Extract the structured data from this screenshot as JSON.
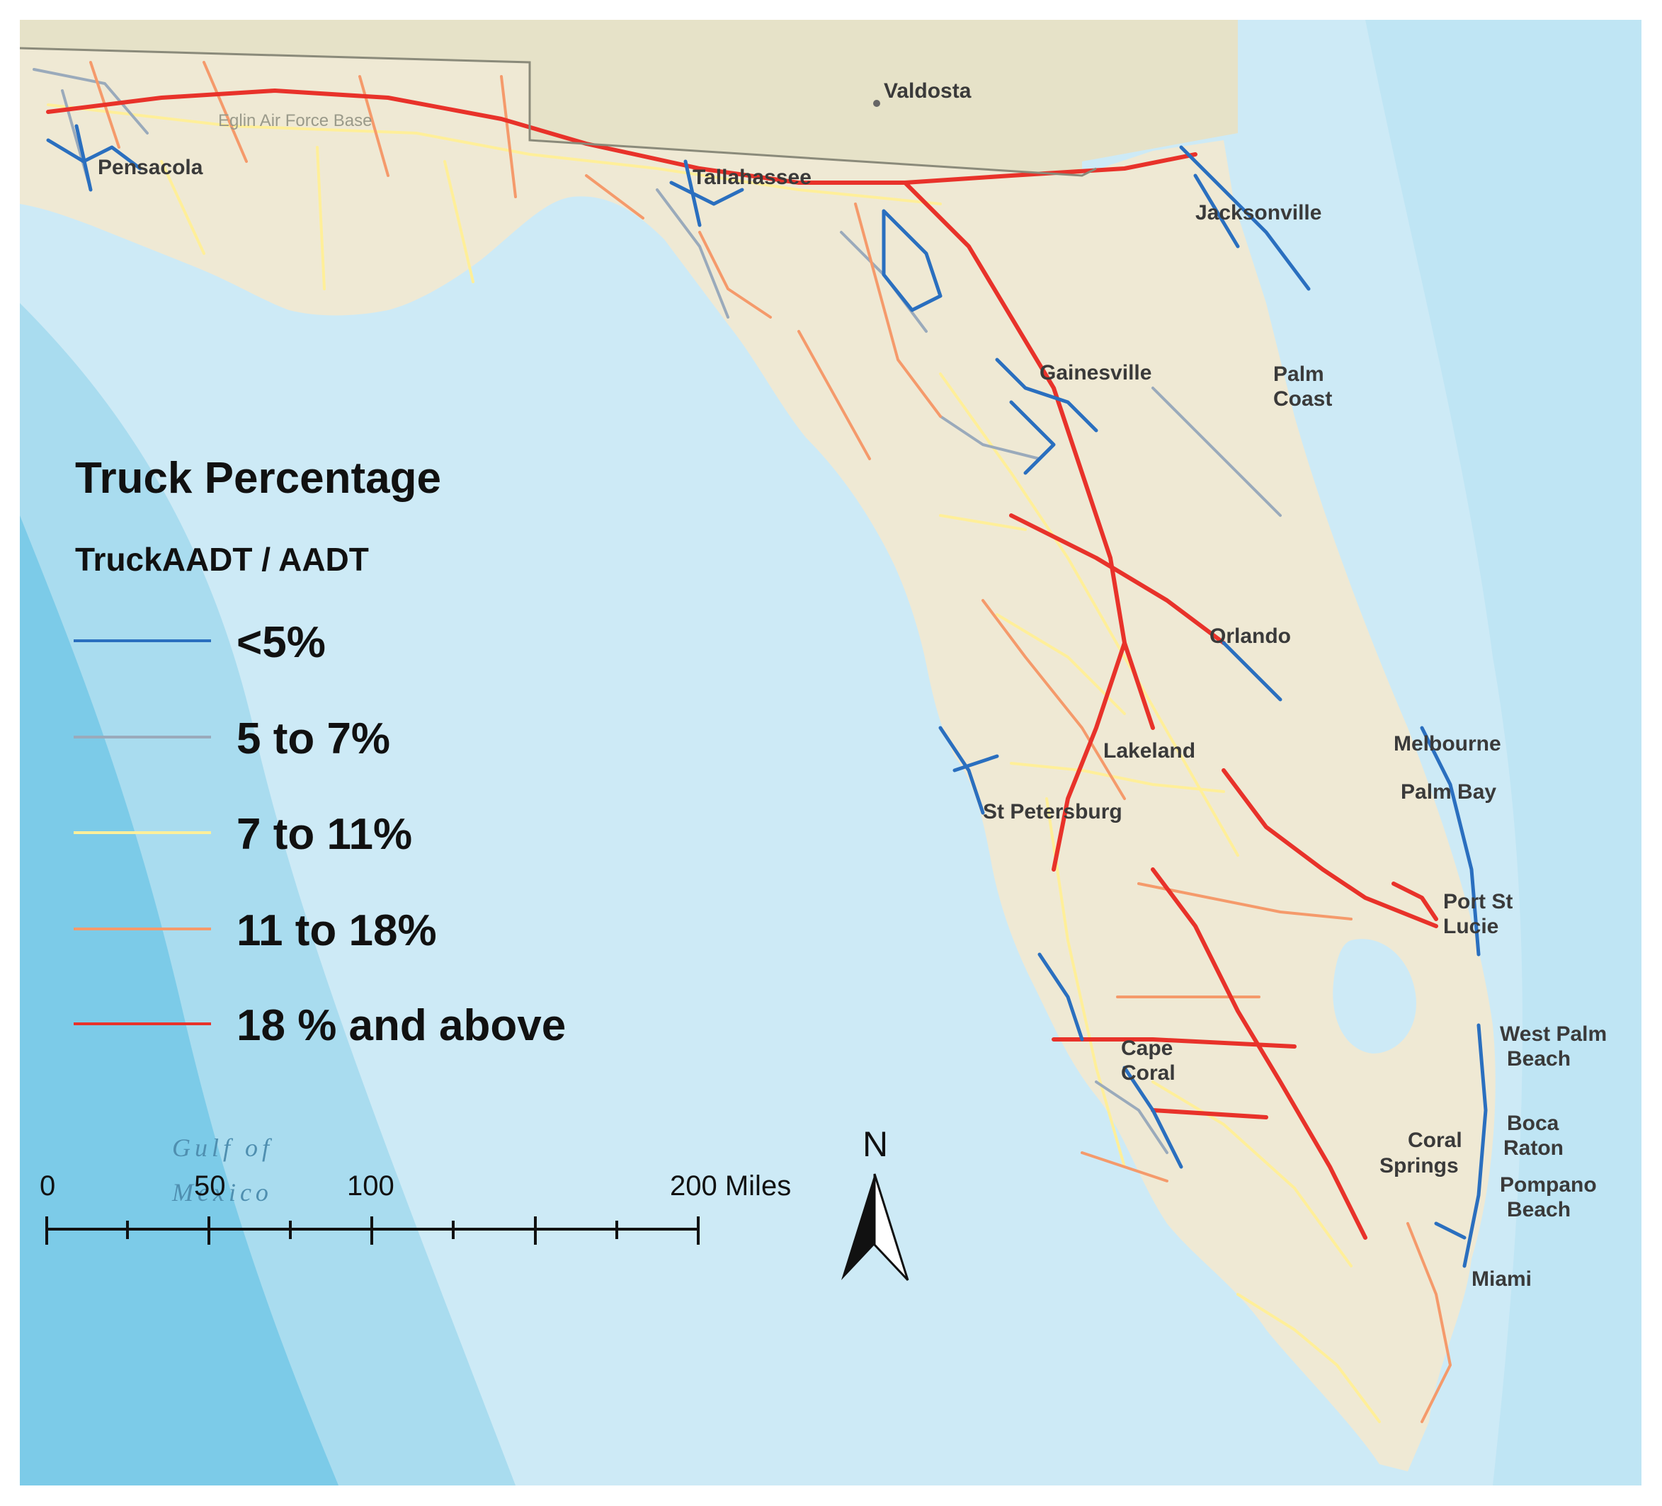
{
  "legend": {
    "title": "Truck Percentage",
    "subtitle": "TruckAADT / AADT",
    "classes": [
      {
        "label": "<5%",
        "color": "#2a6fbf"
      },
      {
        "label": "5 to 7%",
        "color": "#9aaabb"
      },
      {
        "label": "7 to 11%",
        "color": "#ffef99"
      },
      {
        "label": "11 to 18%",
        "color": "#f59a6b"
      },
      {
        "label": "18 % and above",
        "color": "#e8322a"
      }
    ]
  },
  "cities": {
    "valdosta": "Valdosta",
    "pensacola": "Pensacola",
    "eglin": "Eglin Air Force Base",
    "tallahassee": "Tallahassee",
    "jacksonville": "Jacksonville",
    "gainesville": "Gainesville",
    "palm_coast_1": "Palm",
    "palm_coast_2": "Coast",
    "orlando": "Orlando",
    "melbourne": "Melbourne",
    "palm_bay": "Palm Bay",
    "lakeland": "Lakeland",
    "st_petersburg": "St Petersburg",
    "port_st_lucie_1": "Port St",
    "port_st_lucie_2": "Lucie",
    "west_palm_1": "West Palm",
    "west_palm_2": "Beach",
    "cape_coral_1": "Cape",
    "cape_coral_2": "Coral",
    "boca_1": "Boca",
    "boca_2": "Raton",
    "coral_springs_1": "Coral",
    "coral_springs_2": "Springs",
    "pompano_1": "Pompano",
    "pompano_2": "Beach",
    "miami": "Miami"
  },
  "water_labels": {
    "gulf_1": "Gulf of",
    "gulf_2": "Mexico"
  },
  "scale_bar": {
    "labels": [
      "0",
      "50",
      "100",
      "200 Miles"
    ]
  },
  "north_arrow": {
    "label": "N"
  },
  "colors": {
    "land": "#efe9d4",
    "land_north": "#e6e2c8",
    "water_shallow": "#cdeaf6",
    "water_mid": "#a9dcef",
    "water_deep": "#7ccbe8"
  }
}
